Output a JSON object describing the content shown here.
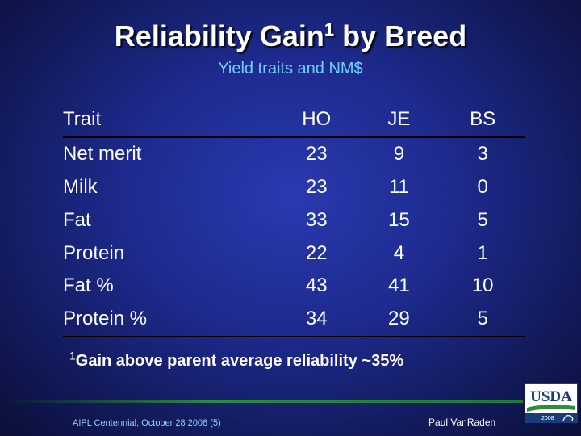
{
  "slide": {
    "title_main": "Reliability Gain",
    "title_sup": "1",
    "title_end": " by Breed",
    "subtitle": "Yield traits and NM$"
  },
  "table": {
    "headers": [
      "Trait",
      "HO",
      "JE",
      "BS"
    ],
    "rows": [
      [
        "Net merit",
        "23",
        "9",
        "3"
      ],
      [
        "Milk",
        "23",
        "11",
        "0"
      ],
      [
        "Fat",
        "33",
        "15",
        "5"
      ],
      [
        "Protein",
        "22",
        "4",
        "1"
      ],
      [
        "Fat %",
        "43",
        "41",
        "10"
      ],
      [
        "Protein %",
        "34",
        "29",
        "5"
      ]
    ]
  },
  "footnote": {
    "marker": "1",
    "text": "Gain above parent average reliability ~35%"
  },
  "footer": {
    "left": "AIPL Centennial, October 28 2008 (5)",
    "right": "Paul VanRaden"
  },
  "logo": {
    "name": "usda-ars-logo",
    "text": "USDA",
    "year": "2008",
    "colors": {
      "blue": "#1a3d7a",
      "green": "#2f8c3a"
    }
  }
}
